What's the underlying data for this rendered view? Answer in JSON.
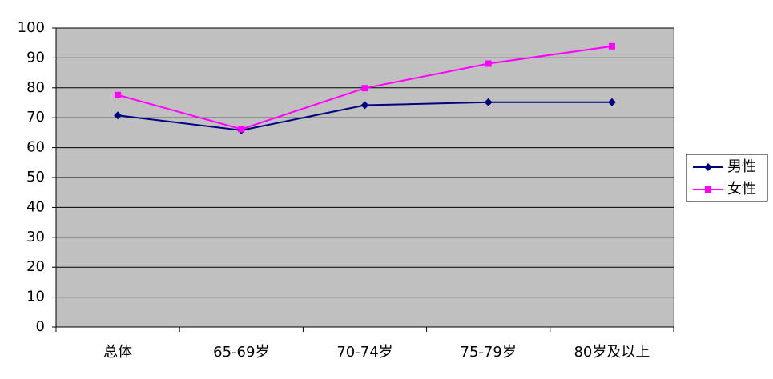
{
  "chart_data": {
    "type": "line",
    "categories": [
      "总体",
      "65-69岁",
      "70-74岁",
      "75-79岁",
      "80岁及以上"
    ],
    "series": [
      {
        "name": "男性",
        "color": "#000080",
        "marker": "diamond",
        "values": [
          70.8,
          65.8,
          74.2,
          75.2,
          75.2
        ]
      },
      {
        "name": "女性",
        "color": "#ff00ff",
        "marker": "square",
        "values": [
          77.6,
          66.2,
          79.9,
          88.1,
          93.9
        ]
      }
    ],
    "ylim": [
      0,
      100
    ],
    "yticks": [
      0,
      10,
      20,
      30,
      40,
      50,
      60,
      70,
      80,
      90,
      100
    ],
    "grid": true,
    "legend": "right",
    "background": "#c0c0c0"
  }
}
